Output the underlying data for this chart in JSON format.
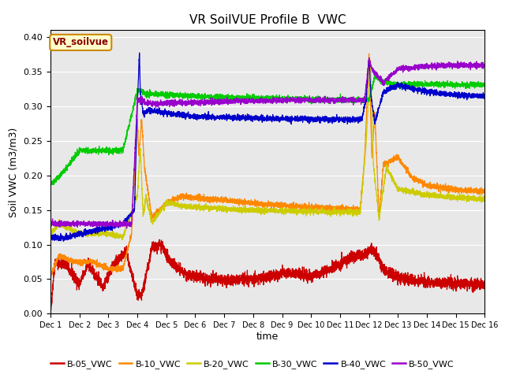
{
  "title": "VR SoilVUE Profile B  VWC",
  "ylabel": "Soil VWC (m3/m3)",
  "xlabel": "time",
  "watermark_text": "VR_soilvue",
  "ylim": [
    0.0,
    0.41
  ],
  "yticks": [
    0.0,
    0.05,
    0.1,
    0.15,
    0.2,
    0.25,
    0.3,
    0.35,
    0.4
  ],
  "xtick_labels": [
    "Dec 1",
    "Dec 2",
    "Dec 3",
    "Dec 4",
    "Dec 5",
    "Dec 6",
    "Dec 7",
    "Dec 8",
    "Dec 9",
    "Dec 10",
    "Dec 11",
    "Dec 12",
    "Dec 13",
    "Dec 14",
    "Dec 15",
    "Dec 16"
  ],
  "n_days": 15,
  "colors": {
    "B05": "#cc0000",
    "B10": "#ff8800",
    "B20": "#cccc00",
    "B30": "#00cc00",
    "B40": "#0000cc",
    "B50": "#9900cc"
  },
  "legend_labels": [
    "B-05_VWC",
    "B-10_VWC",
    "B-20_VWC",
    "B-30_VWC",
    "B-40_VWC",
    "B-50_VWC"
  ],
  "background_color": "#e8e8e8",
  "watermark_bg": "#ffffcc",
  "watermark_border": "#cc8800",
  "fig_width": 6.4,
  "fig_height": 4.8,
  "dpi": 100
}
